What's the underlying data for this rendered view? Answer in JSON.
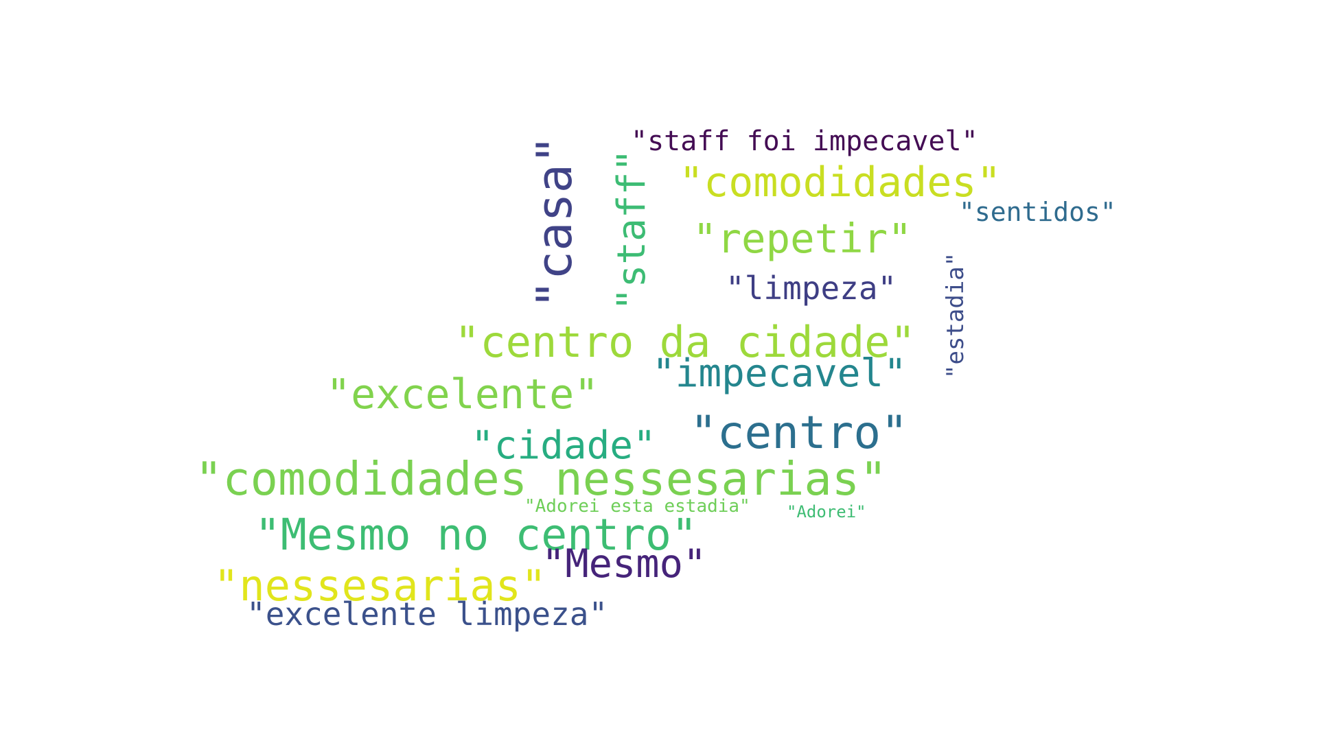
{
  "word_cloud": {
    "words": [
      {
        "text": "\"staff foi impecavel\"",
        "color": "#440d54"
      },
      {
        "text": "\"comodidades\"",
        "color": "#c9de22"
      },
      {
        "text": "\"sentidos\"",
        "color": "#2f6b8e"
      },
      {
        "text": "\"repetir\"",
        "color": "#8fd744"
      },
      {
        "text": "\"limpeza\"",
        "color": "#3e3e84"
      },
      {
        "text": "\"casa\"",
        "color": "#404387"
      },
      {
        "text": "\"staff\"",
        "color": "#3dbc74"
      },
      {
        "text": "\"estadia\"",
        "color": "#3d4d8a"
      },
      {
        "text": "\"centro da cidade\"",
        "color": "#9dd93b"
      },
      {
        "text": "\"impecavel\"",
        "color": "#24868e"
      },
      {
        "text": "\"excelente\"",
        "color": "#81d34d"
      },
      {
        "text": "\"centro\"",
        "color": "#2c6f8e"
      },
      {
        "text": "\"cidade\"",
        "color": "#27ad81"
      },
      {
        "text": "\"comodidades nessesarias\"",
        "color": "#7ad151"
      },
      {
        "text": "\"Adorei esta estadia\"",
        "color": "#6ece58"
      },
      {
        "text": "\"Adorei\"",
        "color": "#3ebc73"
      },
      {
        "text": "\"Mesmo no centro\"",
        "color": "#3dbd73"
      },
      {
        "text": "\"Mesmo\"",
        "color": "#46247a"
      },
      {
        "text": "\"nessesarias\"",
        "color": "#e1e51c"
      },
      {
        "text": "\"excelente limpeza\"",
        "color": "#3b518b"
      }
    ]
  }
}
